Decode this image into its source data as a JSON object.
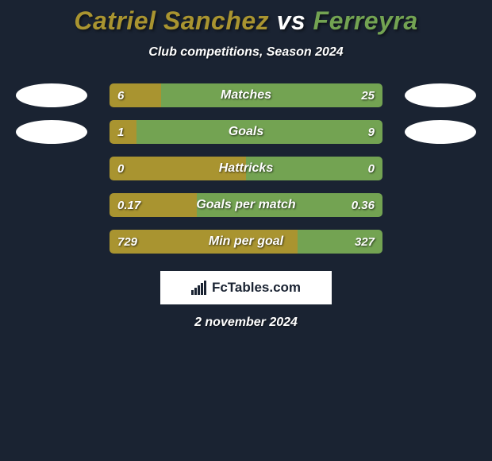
{
  "title": {
    "player1": "Catriel Sanchez",
    "vs": "vs",
    "player2": "Ferreyra",
    "player1_color": "#a99430",
    "vs_color": "#ffffff",
    "player2_color": "#73a352"
  },
  "subtitle": "Club competitions, Season 2024",
  "colors": {
    "player1": "#a99430",
    "player2": "#73a352",
    "background": "#1a2332",
    "text": "#ffffff"
  },
  "stats": [
    {
      "label": "Matches",
      "left_val": "6",
      "right_val": "25",
      "left_pct": 19,
      "right_pct": 81,
      "show_avatars": true
    },
    {
      "label": "Goals",
      "left_val": "1",
      "right_val": "9",
      "left_pct": 10,
      "right_pct": 90,
      "show_avatars": true
    },
    {
      "label": "Hattricks",
      "left_val": "0",
      "right_val": "0",
      "left_pct": 50,
      "right_pct": 50,
      "show_avatars": false
    },
    {
      "label": "Goals per match",
      "left_val": "0.17",
      "right_val": "0.36",
      "left_pct": 32,
      "right_pct": 68,
      "show_avatars": false
    },
    {
      "label": "Min per goal",
      "left_val": "729",
      "right_val": "327",
      "left_pct": 69,
      "right_pct": 31,
      "show_avatars": false
    }
  ],
  "footer": {
    "brand": "FcTables.com",
    "date": "2 november 2024"
  }
}
